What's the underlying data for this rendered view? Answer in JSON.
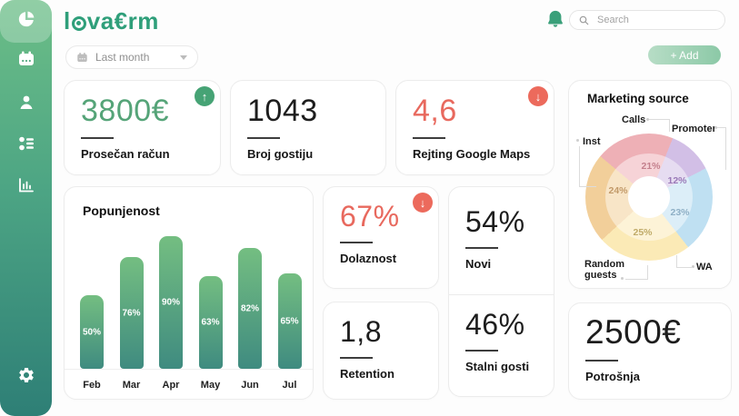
{
  "brand": {
    "name_prefix": "l",
    "name_suffix": "va€rm"
  },
  "topbar": {
    "search_placeholder": "Search"
  },
  "controls": {
    "period_filter": "Last month",
    "add_button": "+ Add"
  },
  "sidebar": {
    "items": [
      "dashboard-pie",
      "calendar",
      "clients",
      "categories",
      "analytics"
    ],
    "active_item": "dashboard-pie",
    "bottom_items": [
      "settings"
    ]
  },
  "icons": {
    "arrow_up": "↑",
    "arrow_down": "↓"
  },
  "stat_cards": {
    "prosecan_racun": {
      "value": "3800€",
      "label": "Prosečan račun",
      "trend": "up"
    },
    "broj_gostiju": {
      "value": "1043",
      "label": "Broj gostiju",
      "trend": null
    },
    "rejting_google_maps": {
      "value": "4,6",
      "label": "Rejting Google Maps",
      "trend": "down"
    },
    "dolaznost": {
      "value": "67%",
      "label": "Dolaznost",
      "trend": "down"
    },
    "novi": {
      "value": "54%",
      "label": "Novi",
      "trend": null
    },
    "retention": {
      "value": "1,8",
      "label": "Retention",
      "trend": null
    },
    "stalni_gosti": {
      "value": "46%",
      "label": "Stalni gosti",
      "trend": null
    },
    "potrosnja": {
      "value": "2500€",
      "label": "Potrošnja",
      "trend": null
    }
  },
  "chart_data": [
    {
      "type": "bar",
      "title": "Popunjenost",
      "categories": [
        "Feb",
        "Mar",
        "Apr",
        "May",
        "Jun",
        "Jul"
      ],
      "values": [
        50,
        76,
        90,
        63,
        82,
        65
      ],
      "value_labels": [
        "50%",
        "76%",
        "90%",
        "63%",
        "82%",
        "65%"
      ],
      "ylim": [
        0,
        100
      ],
      "bar_color_top": "#74be81",
      "bar_color_bottom": "#3f8b80"
    },
    {
      "type": "pie",
      "title": "Marketing source",
      "donut": true,
      "slices": [
        {
          "label": "Calls",
          "value": 21,
          "display": "21%",
          "color": "#eeb0b6"
        },
        {
          "label": "Promoter",
          "value": 12,
          "display": "12%",
          "color": "#d2bfe6"
        },
        {
          "label": "WA",
          "value": 23,
          "display": "23%",
          "color": "#bfe0f2"
        },
        {
          "label": "Random guests",
          "value": 25,
          "display": "25%",
          "color": "#fbeab6"
        },
        {
          "label": "Inst",
          "value": 24,
          "display": "24%",
          "color": "#f2cf9a"
        }
      ]
    }
  ],
  "colors": {
    "accent_green": "#55a478",
    "accent_red": "#e8695e",
    "badge_up": "#46a375",
    "badge_down": "#ec6a5c",
    "sidebar_gradient_top": "#6cbe87",
    "sidebar_gradient_bottom": "#2e7f76",
    "logo": "#2f9f7a"
  }
}
